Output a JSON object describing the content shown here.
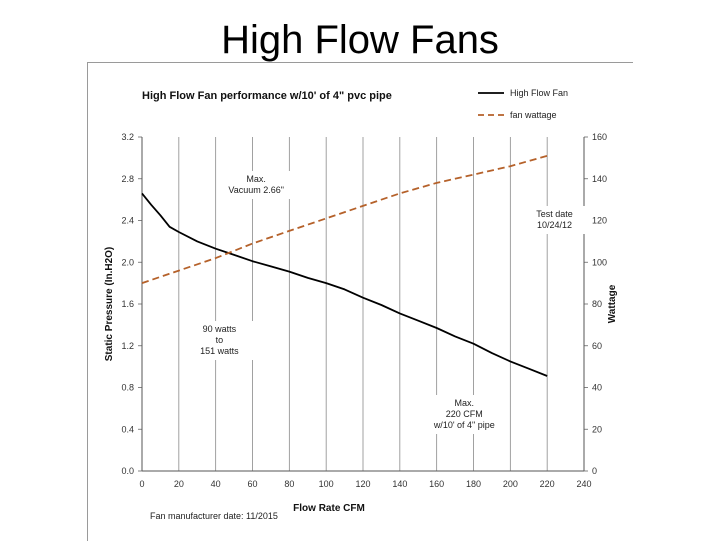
{
  "slide": {
    "title": "High Flow Fans"
  },
  "chart_data": {
    "type": "line",
    "title": "High Flow Fan performance w/10' of 4\" pvc pipe",
    "xlabel": "Flow Rate CFM",
    "ylabel": "Static Pressure (In.H2O)",
    "y2label": "Wattage",
    "xlim": [
      0,
      240
    ],
    "ylim": [
      0,
      3.2
    ],
    "y2lim": [
      0,
      160
    ],
    "x_ticks": [
      "0",
      "20",
      "40",
      "60",
      "80",
      "100",
      "120",
      "140",
      "160",
      "180",
      "200",
      "220",
      "240"
    ],
    "y_ticks": [
      "0.0",
      "0.4",
      "0.8",
      "1.2",
      "1.6",
      "2.0",
      "2.4",
      "2.8",
      "3.2"
    ],
    "y2_ticks": [
      "0",
      "20",
      "40",
      "60",
      "80",
      "100",
      "120",
      "140",
      "160"
    ],
    "grid": "vertical",
    "legend_position": "top-right",
    "series": [
      {
        "name": "High Flow Fan",
        "axis": "left",
        "color": "#000000",
        "style": "solid",
        "x": [
          0,
          5,
          10,
          15,
          20,
          30,
          40,
          50,
          60,
          70,
          80,
          90,
          100,
          110,
          120,
          130,
          140,
          150,
          160,
          170,
          180,
          190,
          200,
          210,
          220
        ],
        "y": [
          2.66,
          2.55,
          2.45,
          2.34,
          2.29,
          2.2,
          2.13,
          2.07,
          2.01,
          1.96,
          1.91,
          1.85,
          1.8,
          1.74,
          1.66,
          1.59,
          1.51,
          1.44,
          1.37,
          1.29,
          1.22,
          1.13,
          1.05,
          0.98,
          0.91
        ]
      },
      {
        "name": "fan wattage",
        "axis": "right",
        "color": "#b5612a",
        "style": "dashed",
        "x": [
          0,
          20,
          40,
          60,
          80,
          100,
          120,
          140,
          160,
          180,
          200,
          220
        ],
        "y": [
          90,
          96,
          102,
          109,
          115,
          121,
          127,
          133,
          138,
          142,
          146,
          151
        ]
      }
    ],
    "annotations": {
      "max_vacuum": [
        "Max.",
        "Vacuum 2.66\""
      ],
      "watts_range": [
        "90 watts",
        "to",
        "151 watts"
      ],
      "test_date": [
        "Test date",
        "10/24/12"
      ],
      "max_cfm": [
        "Max.",
        "220 CFM",
        "w/10' of 4\" pipe"
      ],
      "footnote": "Fan manufacturer date: 11/2015"
    }
  }
}
